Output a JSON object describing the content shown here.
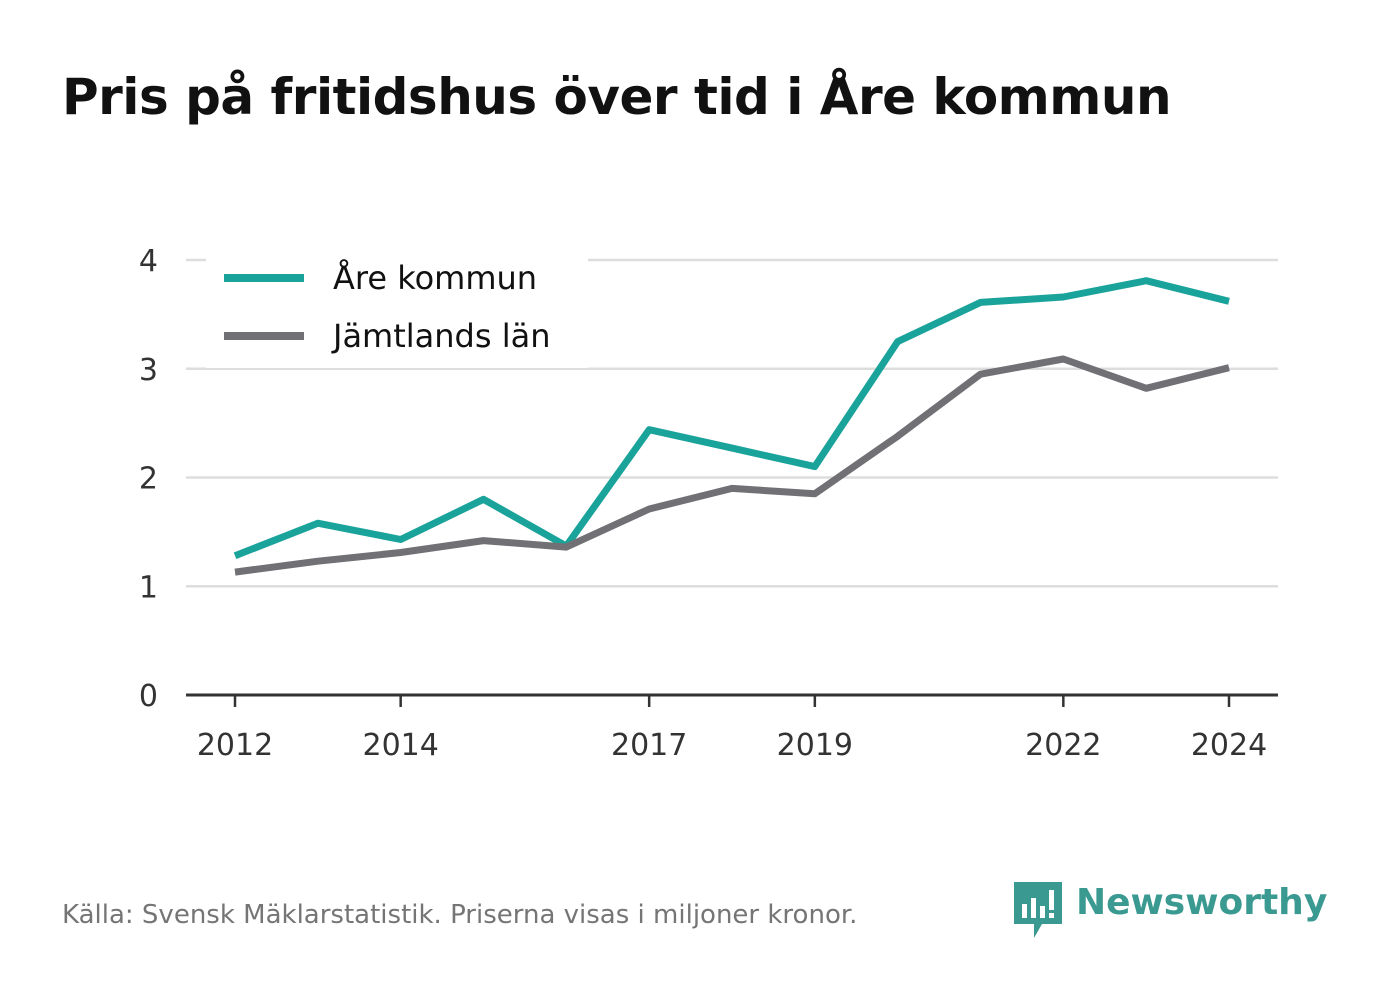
{
  "title": "Pris på fritidshus över tid i Åre kommun",
  "footer": {
    "source": "Källa: Svensk Mäklarstatistik. Priserna visas i miljoner kronor."
  },
  "brand": {
    "name": "Newsworthy",
    "icon": "newsworthy-logo-icon",
    "color": "#3a9990"
  },
  "chart_data": {
    "type": "line",
    "x": [
      2012,
      2013,
      2014,
      2015,
      2016,
      2017,
      2018,
      2019,
      2020,
      2021,
      2022,
      2023,
      2024
    ],
    "x_tick_labels": [
      "2012",
      "2014",
      "2017",
      "2019",
      "2022",
      "2024"
    ],
    "x_ticks": [
      2012,
      2014,
      2017,
      2019,
      2022,
      2024
    ],
    "xlim": [
      2011.4,
      2024.6
    ],
    "ylim": [
      0,
      4
    ],
    "y_ticks": [
      0,
      1,
      2,
      3,
      4
    ],
    "y_tick_labels": [
      "0",
      "1",
      "2",
      "3",
      "4"
    ],
    "grid": true,
    "legend_position": "top-left",
    "series": [
      {
        "name": "Åre kommun",
        "color": "#1aa39a",
        "values": [
          1.28,
          1.58,
          1.43,
          1.8,
          1.37,
          2.44,
          2.27,
          2.1,
          3.25,
          3.61,
          3.66,
          3.81,
          3.62
        ]
      },
      {
        "name": "Jämtlands län",
        "color": "#707075",
        "values": [
          1.13,
          1.23,
          1.31,
          1.42,
          1.36,
          1.71,
          1.9,
          1.85,
          2.38,
          2.95,
          3.09,
          2.82,
          3.01
        ]
      }
    ]
  }
}
